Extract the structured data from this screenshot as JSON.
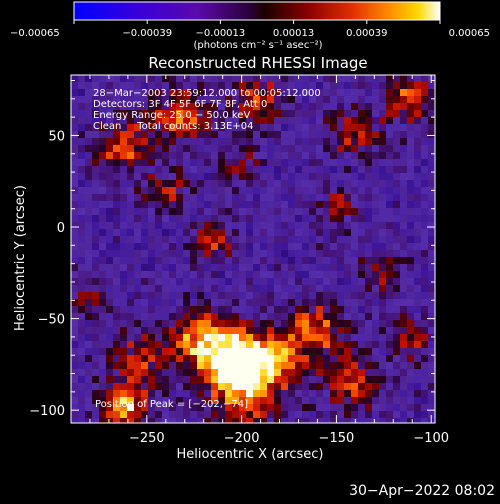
{
  "chart_data": {
    "type": "heatmap",
    "title": "Reconstructed RHESSI Image",
    "xlabel": "Heliocentric X (arcsec)",
    "ylabel": "Heliocentric Y (arcsec)",
    "xlim": [
      -290,
      -98
    ],
    "ylim": [
      -107,
      83
    ],
    "x_ticks": [
      -250,
      -200,
      -150,
      -100
    ],
    "x_tick_labels": [
      "−250",
      "−200",
      "−150",
      "−100"
    ],
    "y_ticks": [
      50,
      0,
      -50,
      -100
    ],
    "y_tick_labels": [
      "50",
      "0",
      "−50",
      "−100"
    ],
    "colorbar": {
      "min": -0.00065,
      "max": 0.00065,
      "ticks": [
        -0.00065,
        -0.00039,
        -0.00013,
        0.00013,
        0.00039,
        0.00065
      ],
      "tick_labels": [
        "−0.00065",
        "−0.00039",
        "−0.00013",
        "0.00013",
        "0.00039",
        "0.00065"
      ],
      "units": "(photons cm⁻² s⁻¹ asec⁻²)"
    },
    "annotations": [
      "28−Mar−2003 23:59:12.000 to 00:05:12.000",
      "Detectors: 3F 4F 5F 6F 7F 8F, Att 0",
      "Energy Range: 25.0 − 50.0 keV",
      "Clean     Total counts: 3.13E+04"
    ],
    "peak_label": "Position of Peak = [−202,−74]",
    "peak": [
      -202,
      -74
    ],
    "blobs": [
      {
        "x": -202,
        "y": -74,
        "amp": 1.0,
        "s": 11
      },
      {
        "x": -222,
        "y": -62,
        "amp": 0.7,
        "s": 12
      },
      {
        "x": -180,
        "y": -70,
        "amp": 0.55,
        "s": 12
      },
      {
        "x": -198,
        "y": -95,
        "amp": 0.5,
        "s": 14
      },
      {
        "x": -262,
        "y": -98,
        "amp": 0.75,
        "s": 9
      },
      {
        "x": -160,
        "y": -55,
        "amp": 0.55,
        "s": 10
      },
      {
        "x": -142,
        "y": -85,
        "amp": 0.5,
        "s": 11
      },
      {
        "x": -112,
        "y": -62,
        "amp": 0.4,
        "s": 9
      },
      {
        "x": -255,
        "y": -72,
        "amp": 0.45,
        "s": 10
      },
      {
        "x": -232,
        "y": 62,
        "amp": 0.6,
        "s": 10
      },
      {
        "x": -262,
        "y": 44,
        "amp": 0.55,
        "s": 11
      },
      {
        "x": -192,
        "y": 70,
        "amp": 0.5,
        "s": 10
      },
      {
        "x": -140,
        "y": 52,
        "amp": 0.45,
        "s": 10
      },
      {
        "x": -112,
        "y": 70,
        "amp": 0.55,
        "s": 9
      },
      {
        "x": -202,
        "y": 34,
        "amp": 0.4,
        "s": 8
      },
      {
        "x": -215,
        "y": -8,
        "amp": 0.55,
        "s": 7
      },
      {
        "x": -150,
        "y": 10,
        "amp": 0.4,
        "s": 8
      },
      {
        "x": -240,
        "y": 20,
        "amp": 0.35,
        "s": 9
      },
      {
        "x": -125,
        "y": -25,
        "amp": 0.35,
        "s": 9
      },
      {
        "x": -280,
        "y": -40,
        "amp": 0.3,
        "s": 8
      }
    ],
    "timestamp": "30−Apr−2022 08:02"
  }
}
